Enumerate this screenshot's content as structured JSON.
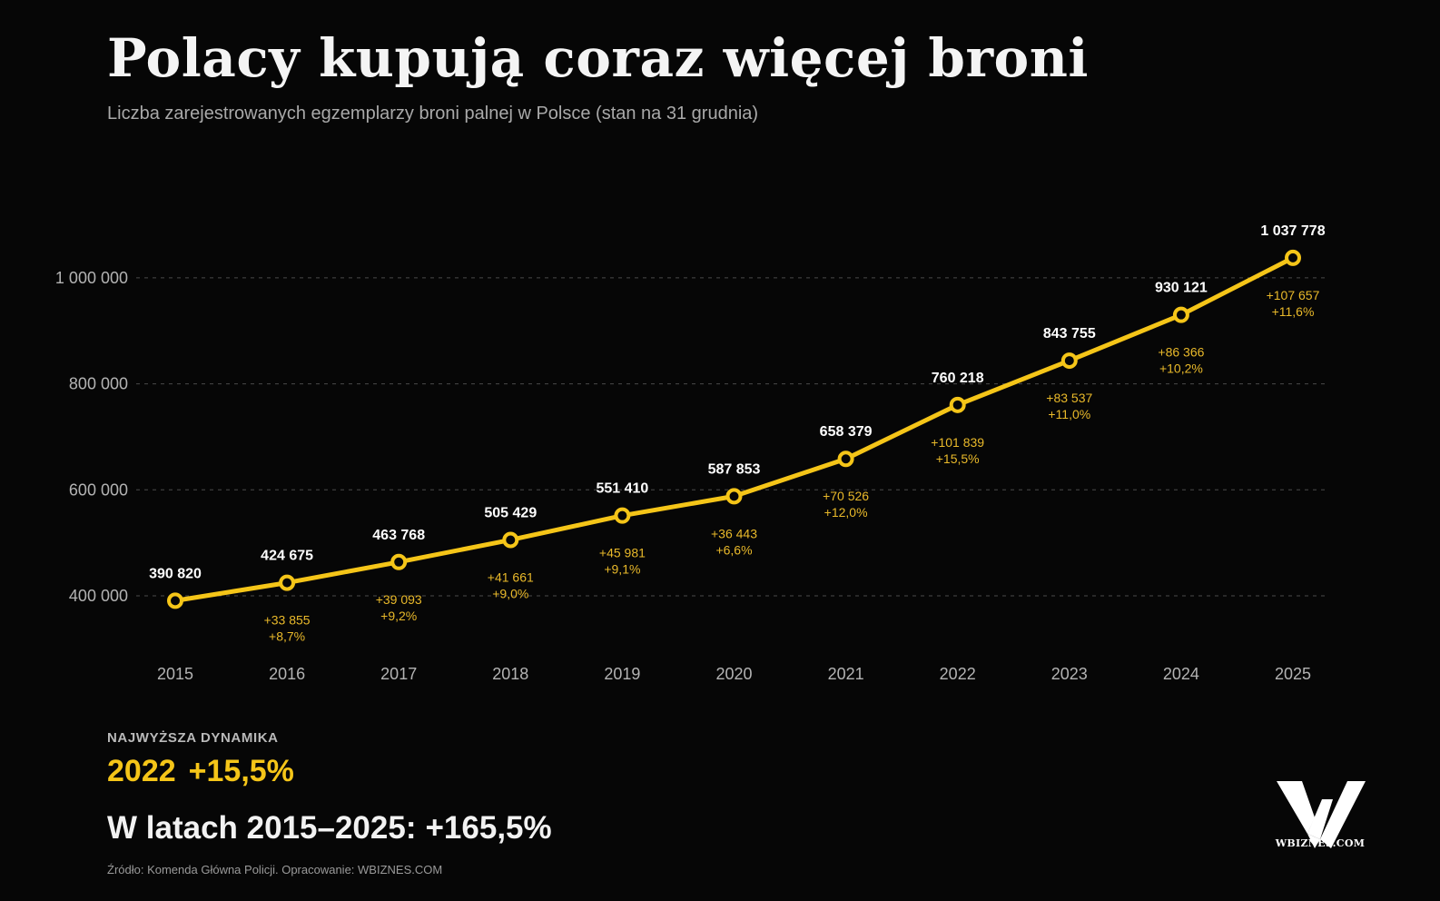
{
  "header": {
    "title": "Polacy kupują coraz więcej broni",
    "subtitle": "Liczba zarejestrowanych egzemplarzy broni palnej w Polsce (stan na 31 grudnia)"
  },
  "colors": {
    "background": "#060606",
    "line": "#f5c518",
    "point_fill": "#060606",
    "value_label": "#ffffff",
    "change_label": "#e9b92a",
    "axis_label": "#b3b3b3",
    "grid": "#4a4a4a"
  },
  "chart_data": {
    "type": "line",
    "title": "Polacy kupują coraz więcej broni",
    "subtitle": "Liczba zarejestrowanych egzemplarzy broni palnej w Polsce (stan na 31 grudnia)",
    "xlabel": "",
    "ylabel": "",
    "categories": [
      "2015",
      "2016",
      "2017",
      "2018",
      "2019",
      "2020",
      "2021",
      "2022",
      "2023",
      "2024",
      "2025"
    ],
    "values": [
      390820,
      424675,
      463768,
      505429,
      551410,
      587853,
      658379,
      760218,
      843755,
      930121,
      1037778
    ],
    "value_labels": [
      "390 820",
      "424 675",
      "463 768",
      "505 429",
      "551 410",
      "587 853",
      "658 379",
      "760 218",
      "843 755",
      "930 121",
      "1 037 778"
    ],
    "change_abs_labels": [
      "",
      "+33 855",
      "+39 093",
      "+41 661",
      "+45 981",
      "+36 443",
      "+70 526",
      "+101 839",
      "+83 537",
      "+86 366",
      "+107 657"
    ],
    "change_pct_labels": [
      "",
      "+8,7%",
      "+9,2%",
      "+9,0%",
      "+9,1%",
      "+6,6%",
      "+12,0%",
      "+15,5%",
      "+11,0%",
      "+10,2%",
      "+11,6%"
    ],
    "yticks": [
      400000,
      600000,
      800000,
      1000000
    ],
    "ytick_labels": [
      "400 000",
      "600 000",
      "800 000",
      "1 000 000"
    ],
    "ylim": [
      295000,
      1080000
    ],
    "grid": true,
    "grid_style": "dashed horizontal",
    "legend": "none"
  },
  "summary": {
    "caption": "NAJWYŻSZA DYNAMIKA",
    "highlight_year": "2022",
    "highlight_value": "+15,5%",
    "total_label": "W latach 2015–2025:",
    "total_value": "+165,5%"
  },
  "footer": {
    "source": "Źródło: Komenda Główna Policji. Opracowanie: WBIZNES.COM"
  },
  "logo": {
    "icon": "wbiznes-logo-icon",
    "text": "WBIZNES.COM"
  }
}
